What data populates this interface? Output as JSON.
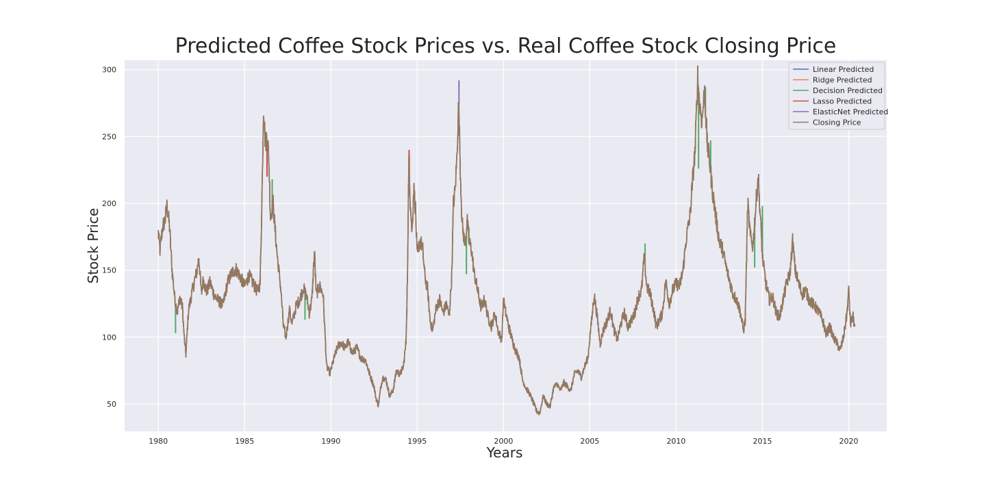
{
  "chart_data": {
    "type": "line",
    "title": "Predicted Coffee Stock Prices vs. Real Coffee Stock Closing Price",
    "xlabel": "Years",
    "ylabel": "Stock Price",
    "xlim": [
      1978.05,
      2022.2
    ],
    "ylim": [
      29.5,
      307
    ],
    "xticks": [
      1980,
      1985,
      1990,
      1995,
      2000,
      2005,
      2010,
      2015,
      2020
    ],
    "yticks": [
      50,
      100,
      150,
      200,
      250,
      300
    ],
    "grid": true,
    "legend_position": "top-right",
    "background": "#eaeaf2",
    "series": [
      {
        "name": "Linear Predicted",
        "color": "#4c72b0"
      },
      {
        "name": "Ridge Predicted",
        "color": "#dd8452"
      },
      {
        "name": "Decision Predicted",
        "color": "#55a868"
      },
      {
        "name": "Lasso Predicted",
        "color": "#c44e52"
      },
      {
        "name": "ElasticNet Predicted",
        "color": "#8172b3"
      },
      {
        "name": "Closing Price",
        "color": "#937860"
      }
    ],
    "closing_price_key_points": [
      [
        1980.0,
        178
      ],
      [
        1980.1,
        165
      ],
      [
        1980.25,
        182
      ],
      [
        1980.4,
        188
      ],
      [
        1980.5,
        198
      ],
      [
        1980.65,
        183
      ],
      [
        1980.8,
        150
      ],
      [
        1980.95,
        130
      ],
      [
        1981.1,
        118
      ],
      [
        1981.25,
        130
      ],
      [
        1981.4,
        122
      ],
      [
        1981.5,
        100
      ],
      [
        1981.6,
        87
      ],
      [
        1981.75,
        120
      ],
      [
        1981.9,
        130
      ],
      [
        1982.1,
        142
      ],
      [
        1982.25,
        150
      ],
      [
        1982.35,
        160
      ],
      [
        1982.5,
        132
      ],
      [
        1982.6,
        143
      ],
      [
        1982.8,
        134
      ],
      [
        1983.0,
        141
      ],
      [
        1983.25,
        131
      ],
      [
        1983.5,
        127
      ],
      [
        1983.75,
        124
      ],
      [
        1984.0,
        140
      ],
      [
        1984.25,
        148
      ],
      [
        1984.5,
        151
      ],
      [
        1984.75,
        145
      ],
      [
        1985.0,
        138
      ],
      [
        1985.25,
        146
      ],
      [
        1985.5,
        140
      ],
      [
        1985.75,
        134
      ],
      [
        1985.9,
        140
      ],
      [
        1986.0,
        200
      ],
      [
        1986.1,
        273
      ],
      [
        1986.2,
        245
      ],
      [
        1986.3,
        252
      ],
      [
        1986.4,
        235
      ],
      [
        1986.5,
        190
      ],
      [
        1986.65,
        200
      ],
      [
        1986.8,
        175
      ],
      [
        1986.9,
        160
      ],
      [
        1987.1,
        136
      ],
      [
        1987.25,
        108
      ],
      [
        1987.4,
        100
      ],
      [
        1987.6,
        120
      ],
      [
        1987.75,
        110
      ],
      [
        1988.0,
        124
      ],
      [
        1988.2,
        128
      ],
      [
        1988.4,
        137
      ],
      [
        1988.6,
        130
      ],
      [
        1988.75,
        118
      ],
      [
        1988.9,
        128
      ],
      [
        1989.05,
        165
      ],
      [
        1989.15,
        132
      ],
      [
        1989.35,
        138
      ],
      [
        1989.55,
        132
      ],
      [
        1989.75,
        78
      ],
      [
        1989.95,
        73
      ],
      [
        1990.2,
        85
      ],
      [
        1990.4,
        93
      ],
      [
        1990.6,
        96
      ],
      [
        1990.8,
        92
      ],
      [
        1991.0,
        96
      ],
      [
        1991.25,
        88
      ],
      [
        1991.5,
        92
      ],
      [
        1991.75,
        84
      ],
      [
        1992.0,
        83
      ],
      [
        1992.25,
        72
      ],
      [
        1992.5,
        63
      ],
      [
        1992.6,
        55
      ],
      [
        1992.75,
        49
      ],
      [
        1992.9,
        63
      ],
      [
        1993.0,
        70
      ],
      [
        1993.2,
        68
      ],
      [
        1993.4,
        56
      ],
      [
        1993.6,
        60
      ],
      [
        1993.8,
        75
      ],
      [
        1994.0,
        72
      ],
      [
        1994.2,
        78
      ],
      [
        1994.35,
        96
      ],
      [
        1994.45,
        155
      ],
      [
        1994.52,
        238
      ],
      [
        1994.6,
        200
      ],
      [
        1994.7,
        178
      ],
      [
        1994.8,
        212
      ],
      [
        1994.9,
        196
      ],
      [
        1995.0,
        160
      ],
      [
        1995.15,
        172
      ],
      [
        1995.3,
        168
      ],
      [
        1995.45,
        145
      ],
      [
        1995.6,
        136
      ],
      [
        1995.75,
        112
      ],
      [
        1995.9,
        105
      ],
      [
        1996.1,
        122
      ],
      [
        1996.3,
        128
      ],
      [
        1996.5,
        118
      ],
      [
        1996.7,
        125
      ],
      [
        1996.85,
        115
      ],
      [
        1997.0,
        145
      ],
      [
        1997.1,
        200
      ],
      [
        1997.2,
        210
      ],
      [
        1997.3,
        235
      ],
      [
        1997.4,
        276
      ],
      [
        1997.5,
        225
      ],
      [
        1997.6,
        185
      ],
      [
        1997.75,
        170
      ],
      [
        1997.9,
        186
      ],
      [
        1998.0,
        172
      ],
      [
        1998.15,
        165
      ],
      [
        1998.3,
        148
      ],
      [
        1998.5,
        135
      ],
      [
        1998.7,
        122
      ],
      [
        1998.9,
        128
      ],
      [
        1999.1,
        115
      ],
      [
        1999.3,
        108
      ],
      [
        1999.5,
        118
      ],
      [
        1999.7,
        104
      ],
      [
        1999.9,
        98
      ],
      [
        2000.0,
        128
      ],
      [
        2000.1,
        120
      ],
      [
        2000.3,
        108
      ],
      [
        2000.5,
        98
      ],
      [
        2000.7,
        90
      ],
      [
        2000.9,
        85
      ],
      [
        2001.1,
        68
      ],
      [
        2001.3,
        62
      ],
      [
        2001.5,
        58
      ],
      [
        2001.7,
        52
      ],
      [
        2001.9,
        45
      ],
      [
        2002.1,
        43
      ],
      [
        2002.3,
        56
      ],
      [
        2002.5,
        50
      ],
      [
        2002.7,
        48
      ],
      [
        2002.9,
        62
      ],
      [
        2003.1,
        65
      ],
      [
        2003.3,
        60
      ],
      [
        2003.5,
        66
      ],
      [
        2003.7,
        63
      ],
      [
        2003.9,
        60
      ],
      [
        2004.1,
        72
      ],
      [
        2004.3,
        75
      ],
      [
        2004.5,
        70
      ],
      [
        2004.7,
        78
      ],
      [
        2004.9,
        85
      ],
      [
        2005.0,
        100
      ],
      [
        2005.15,
        118
      ],
      [
        2005.25,
        132
      ],
      [
        2005.4,
        118
      ],
      [
        2005.6,
        95
      ],
      [
        2005.8,
        106
      ],
      [
        2006.0,
        112
      ],
      [
        2006.2,
        120
      ],
      [
        2006.4,
        105
      ],
      [
        2006.6,
        98
      ],
      [
        2006.8,
        110
      ],
      [
        2007.0,
        118
      ],
      [
        2007.2,
        108
      ],
      [
        2007.4,
        112
      ],
      [
        2007.6,
        118
      ],
      [
        2007.8,
        130
      ],
      [
        2008.0,
        135
      ],
      [
        2008.15,
        160
      ],
      [
        2008.3,
        138
      ],
      [
        2008.5,
        132
      ],
      [
        2008.7,
        120
      ],
      [
        2008.85,
        108
      ],
      [
        2009.0,
        112
      ],
      [
        2009.2,
        118
      ],
      [
        2009.4,
        142
      ],
      [
        2009.6,
        125
      ],
      [
        2009.8,
        135
      ],
      [
        2010.0,
        140
      ],
      [
        2010.2,
        138
      ],
      [
        2010.4,
        150
      ],
      [
        2010.6,
        175
      ],
      [
        2010.8,
        190
      ],
      [
        2011.0,
        225
      ],
      [
        2011.1,
        240
      ],
      [
        2011.25,
        295
      ],
      [
        2011.35,
        275
      ],
      [
        2011.5,
        262
      ],
      [
        2011.65,
        285
      ],
      [
        2011.8,
        245
      ],
      [
        2011.95,
        230
      ],
      [
        2012.1,
        210
      ],
      [
        2012.3,
        190
      ],
      [
        2012.5,
        172
      ],
      [
        2012.7,
        165
      ],
      [
        2012.9,
        152
      ],
      [
        2013.1,
        142
      ],
      [
        2013.3,
        132
      ],
      [
        2013.5,
        128
      ],
      [
        2013.7,
        120
      ],
      [
        2013.9,
        105
      ],
      [
        2014.0,
        112
      ],
      [
        2014.15,
        200
      ],
      [
        2014.3,
        175
      ],
      [
        2014.45,
        168
      ],
      [
        2014.6,
        195
      ],
      [
        2014.75,
        220
      ],
      [
        2014.9,
        185
      ],
      [
        2015.0,
        160
      ],
      [
        2015.2,
        140
      ],
      [
        2015.4,
        128
      ],
      [
        2015.6,
        130
      ],
      [
        2015.8,
        118
      ],
      [
        2016.0,
        115
      ],
      [
        2016.2,
        128
      ],
      [
        2016.4,
        140
      ],
      [
        2016.6,
        148
      ],
      [
        2016.75,
        172
      ],
      [
        2016.9,
        150
      ],
      [
        2017.1,
        140
      ],
      [
        2017.3,
        132
      ],
      [
        2017.5,
        135
      ],
      [
        2017.7,
        128
      ],
      [
        2017.9,
        125
      ],
      [
        2018.1,
        122
      ],
      [
        2018.3,
        118
      ],
      [
        2018.5,
        112
      ],
      [
        2018.7,
        102
      ],
      [
        2018.9,
        108
      ],
      [
        2019.1,
        100
      ],
      [
        2019.3,
        96
      ],
      [
        2019.5,
        90
      ],
      [
        2019.7,
        100
      ],
      [
        2019.9,
        118
      ],
      [
        2020.0,
        135
      ],
      [
        2020.1,
        110
      ],
      [
        2020.25,
        115
      ],
      [
        2020.35,
        108
      ]
    ],
    "prediction_spikes": [
      {
        "series": "Decision Predicted",
        "x": 1981.0,
        "y": 103
      },
      {
        "series": "Decision Predicted",
        "x": 1986.35,
        "y": 240
      },
      {
        "series": "Lasso Predicted",
        "x": 1986.3,
        "y": 220
      },
      {
        "series": "Decision Predicted",
        "x": 1986.6,
        "y": 218
      },
      {
        "series": "Decision Predicted",
        "x": 1988.5,
        "y": 113
      },
      {
        "series": "Lasso Predicted",
        "x": 1994.53,
        "y": 240
      },
      {
        "series": "Ridge Predicted",
        "x": 1994.55,
        "y": 237
      },
      {
        "series": "Decision Predicted",
        "x": 1994.4,
        "y": 117
      },
      {
        "series": "ElasticNet Predicted",
        "x": 1997.42,
        "y": 292
      },
      {
        "series": "Decision Predicted",
        "x": 1997.45,
        "y": 252
      },
      {
        "series": "Decision Predicted",
        "x": 1997.85,
        "y": 147
      },
      {
        "series": "Decision Predicted",
        "x": 1998.0,
        "y": 182
      },
      {
        "series": "Decision Predicted",
        "x": 2000.35,
        "y": 102
      },
      {
        "series": "Decision Predicted",
        "x": 2008.2,
        "y": 170
      },
      {
        "series": "Decision Predicted",
        "x": 2011.3,
        "y": 226
      },
      {
        "series": "Decision Predicted",
        "x": 2011.7,
        "y": 287
      },
      {
        "series": "Decision Predicted",
        "x": 2012.0,
        "y": 247
      },
      {
        "series": "ElasticNet Predicted",
        "x": 2014.78,
        "y": 222
      },
      {
        "series": "Decision Predicted",
        "x": 2014.55,
        "y": 152
      },
      {
        "series": "Decision Predicted",
        "x": 2015.0,
        "y": 198
      }
    ]
  }
}
